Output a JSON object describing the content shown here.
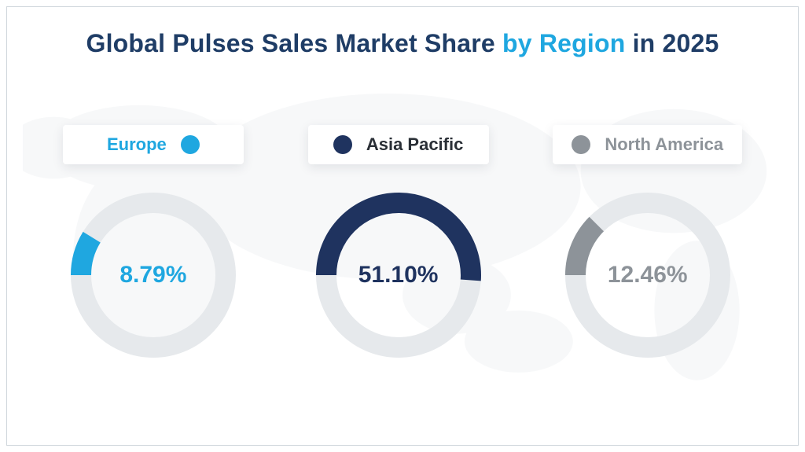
{
  "title": {
    "pre": "Global Pulses Sales Market Share ",
    "highlight": "by Region",
    "post": " in 2025",
    "color_main": "#1f3d66",
    "color_highlight": "#1fa7e0",
    "fontsize": 32,
    "fontweight": 700
  },
  "background": {
    "page": "#ffffff",
    "frame_border": "#d0d6dc",
    "map_fill": "#d7dde2",
    "map_opacity": 0.18
  },
  "donut_defaults": {
    "track_color": "#e6e9ec",
    "stroke_width": 26,
    "size": 210,
    "start_angle_deg": -180
  },
  "regions": [
    {
      "name": "Europe",
      "label_color": "#1fa7e0",
      "dot_color": "#1fa7e0",
      "percent": 8.79,
      "percent_label": "8.79%",
      "arc_color": "#1fa7e0",
      "value_text_color": "#1fa7e0",
      "pill_order": "label-first"
    },
    {
      "name": "Asia Pacific",
      "label_color": "#2a2f36",
      "dot_color": "#1f335f",
      "percent": 51.1,
      "percent_label": "51.10%",
      "arc_color": "#1f335f",
      "value_text_color": "#1f335f",
      "pill_order": "dot-first"
    },
    {
      "name": "North America",
      "label_color": "#8d9399",
      "dot_color": "#8d9399",
      "percent": 12.46,
      "percent_label": "12.46%",
      "arc_color": "#8d9399",
      "value_text_color": "#8d9399",
      "pill_order": "dot-first"
    }
  ]
}
